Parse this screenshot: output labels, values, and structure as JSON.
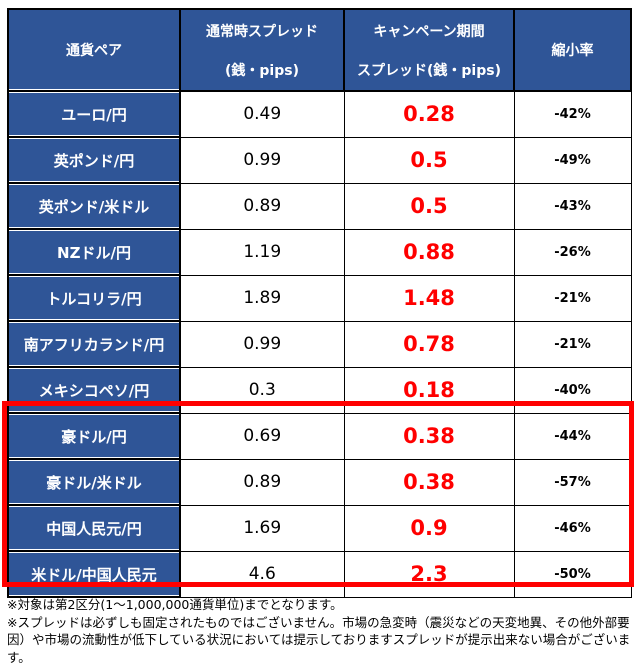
{
  "colors": {
    "header_bg": "#2F5597",
    "header_text": "#FFFFFF",
    "campaign_value_text": "#FF0000",
    "highlight_border": "#FF0000",
    "grid_border": "#000000"
  },
  "table": {
    "header": {
      "currency_pair": "通貨ペア",
      "normal_spread_line1": "通常時スプレッド",
      "normal_spread_line2": "(銭・pips)",
      "campaign_spread_line1": "キャンペーン期間",
      "campaign_spread_line2": "スプレッド(銭・pips)",
      "reduction_rate": "縮小率"
    },
    "rows": [
      {
        "pair": "ユーロ/円",
        "normal": "0.49",
        "campaign": "0.28",
        "reduction": "-42%",
        "highlighted": false
      },
      {
        "pair": "英ポンド/円",
        "normal": "0.99",
        "campaign": "0.5",
        "reduction": "-49%",
        "highlighted": false
      },
      {
        "pair": "英ポンド/米ドル",
        "normal": "0.89",
        "campaign": "0.5",
        "reduction": "-43%",
        "highlighted": false
      },
      {
        "pair": "NZドル/円",
        "normal": "1.19",
        "campaign": "0.88",
        "reduction": "-26%",
        "highlighted": false
      },
      {
        "pair": "トルコリラ/円",
        "normal": "1.89",
        "campaign": "1.48",
        "reduction": "-21%",
        "highlighted": false
      },
      {
        "pair": "南アフリカランド/円",
        "normal": "0.99",
        "campaign": "0.78",
        "reduction": "-21%",
        "highlighted": false
      },
      {
        "pair": "メキシコペソ/円",
        "normal": "0.3",
        "campaign": "0.18",
        "reduction": "-40%",
        "highlighted": false
      },
      {
        "pair": "豪ドル/円",
        "normal": "0.69",
        "campaign": "0.38",
        "reduction": "-44%",
        "highlighted": true
      },
      {
        "pair": "豪ドル/米ドル",
        "normal": "0.89",
        "campaign": "0.38",
        "reduction": "-57%",
        "highlighted": true
      },
      {
        "pair": "中国人民元/円",
        "normal": "1.69",
        "campaign": "0.9",
        "reduction": "-46%",
        "highlighted": true
      },
      {
        "pair": "米ドル/中国人民元",
        "normal": "4.6",
        "campaign": "2.3",
        "reduction": "-50%",
        "highlighted": true
      }
    ]
  },
  "notes": [
    "※対象は第2区分(1～1,000,000通貨単位)までとなります。",
    "※スプレッドは必ずしも固定されたものではございません。市場の急変時（震災などの天変地異、その他外部要因）や市場の流動性が低下している状況においては提示しておりますスプレッドが提示出来ない場合がございます。"
  ],
  "chart_data": {
    "type": "table",
    "title": "",
    "columns": [
      "通貨ペア",
      "通常時スプレッド(銭・pips)",
      "キャンペーン期間スプレッド(銭・pips)",
      "縮小率"
    ],
    "rows": [
      [
        "ユーロ/円",
        0.49,
        0.28,
        "-42%"
      ],
      [
        "英ポンド/円",
        0.99,
        0.5,
        "-49%"
      ],
      [
        "英ポンド/米ドル",
        0.89,
        0.5,
        "-43%"
      ],
      [
        "NZドル/円",
        1.19,
        0.88,
        "-26%"
      ],
      [
        "トルコリラ/円",
        1.89,
        1.48,
        "-21%"
      ],
      [
        "南アフリカランド/円",
        0.99,
        0.78,
        "-21%"
      ],
      [
        "メキシコペソ/円",
        0.3,
        0.18,
        "-40%"
      ],
      [
        "豪ドル/円",
        0.69,
        0.38,
        "-44%"
      ],
      [
        "豪ドル/米ドル",
        0.89,
        0.38,
        "-57%"
      ],
      [
        "中国人民元/円",
        1.69,
        0.9,
        "-46%"
      ],
      [
        "米ドル/中国人民元",
        4.6,
        2.3,
        "-50%"
      ]
    ],
    "highlighted_rows": [
      "豪ドル/円",
      "豪ドル/米ドル",
      "中国人民元/円",
      "米ドル/中国人民元"
    ],
    "annotations": [
      "※対象は第2区分(1～1,000,000通貨単位)までとなります。",
      "※スプレッドは必ずしも固定されたものではございません。市場の急変時（震災などの天変地異、その他外部要因）や市場の流動性が低下している状況においては提示しておりますスプレッドが提示出来ない場合がございます。"
    ]
  }
}
